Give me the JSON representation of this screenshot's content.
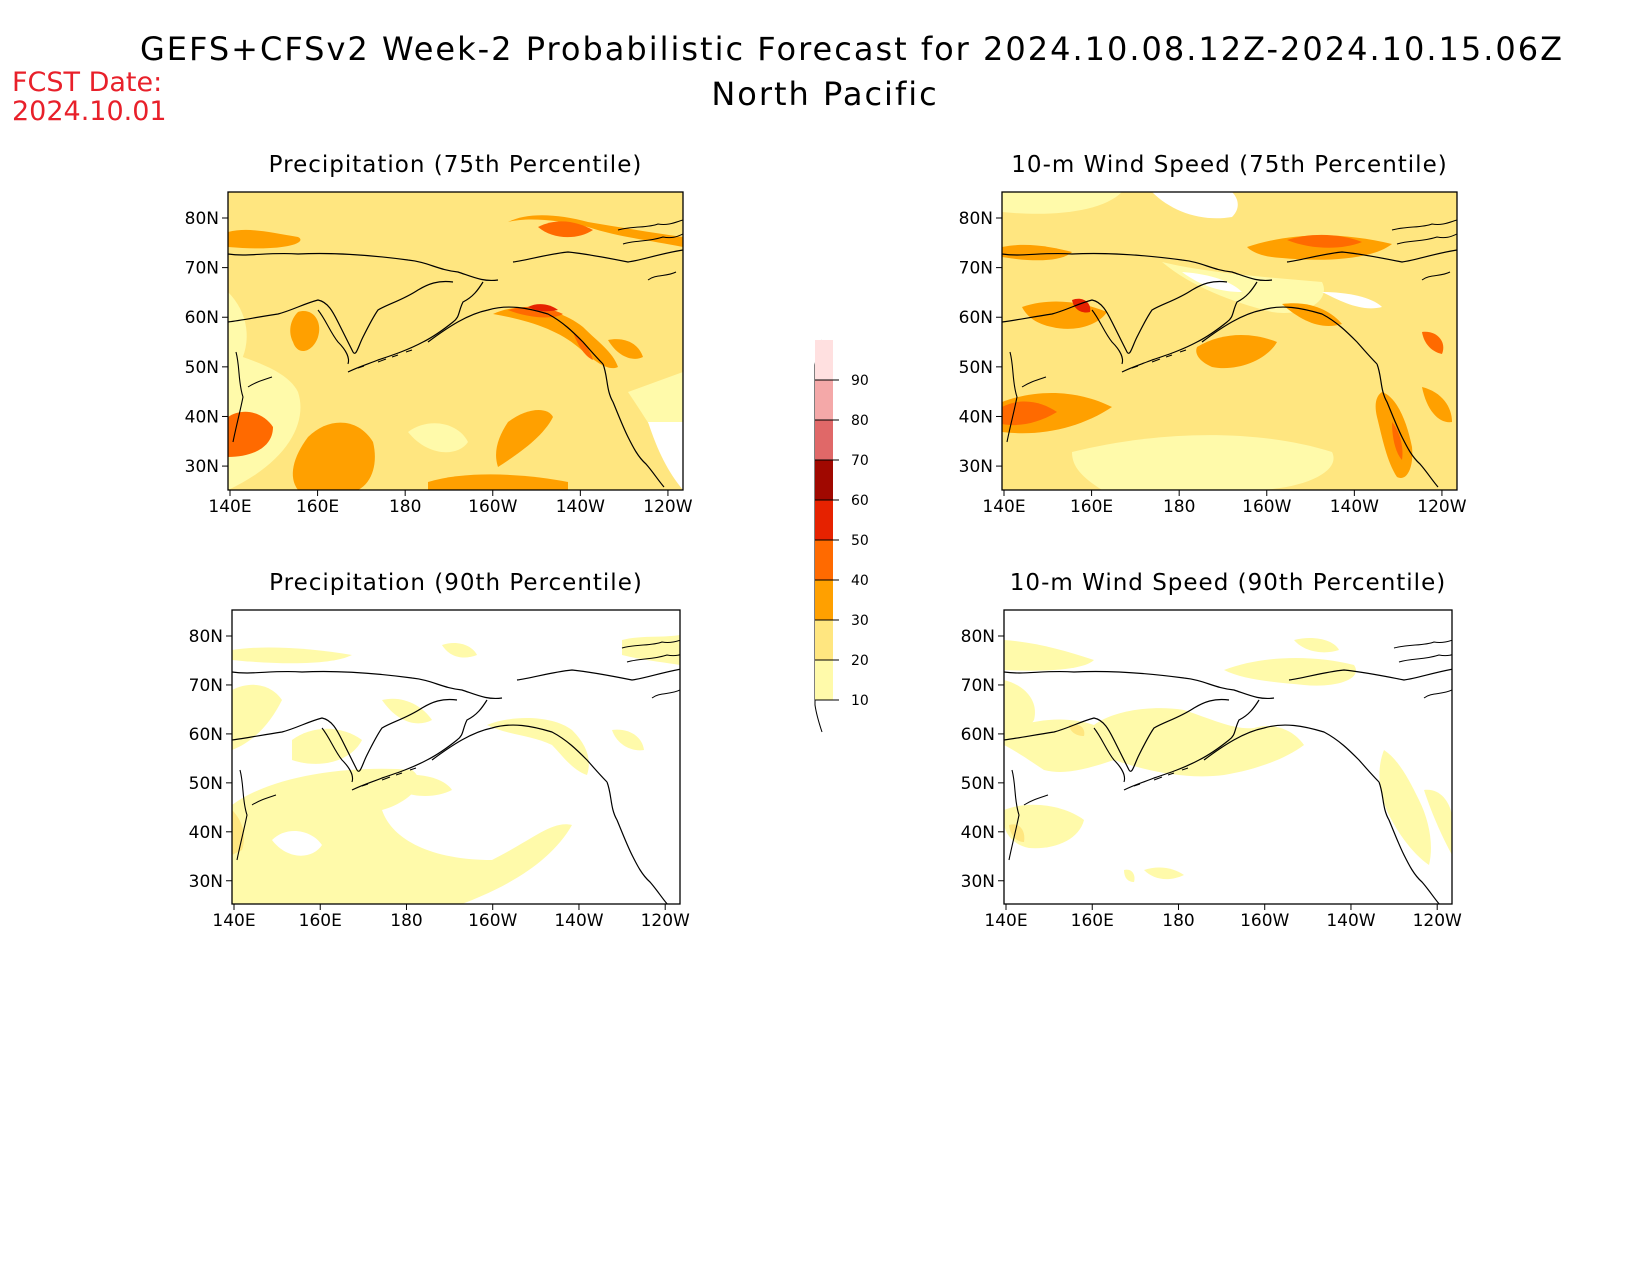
{
  "header": {
    "title": "GEFS+CFSv2 Week-2 Probabilistic Forecast for 2024.10.08.12Z-2024.10.15.06Z",
    "subtitle": "North Pacific",
    "fcst_label": "FCST Date:",
    "fcst_date": "2024.10.01"
  },
  "panels": [
    {
      "title": "Precipitation (75th Percentile)"
    },
    {
      "title": "10-m Wind Speed (75th Percentile)"
    },
    {
      "title": "Precipitation (90th Percentile)"
    },
    {
      "title": "10-m Wind Speed (90th Percentile)"
    }
  ],
  "axes": {
    "lon_labels": [
      "140E",
      "160E",
      "180",
      "160W",
      "140W",
      "120W"
    ],
    "lat_labels": [
      "80N",
      "70N",
      "60N",
      "50N",
      "40N",
      "30N"
    ]
  },
  "colorbar": {
    "levels": [
      "10",
      "20",
      "30",
      "40",
      "50",
      "60",
      "70",
      "80",
      "90"
    ],
    "colors": [
      "#fffaaa",
      "#ffe680",
      "#ffa000",
      "#ff6a00",
      "#e62200",
      "#a00800",
      "#e06868",
      "#f4a8a8",
      "#ffe0e0"
    ]
  }
}
